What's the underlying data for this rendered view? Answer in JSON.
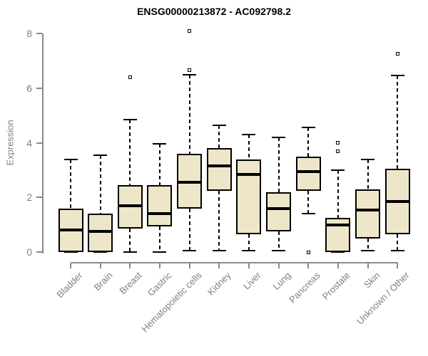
{
  "title": "ENSG00000213872 - AC092798.2",
  "chart_data": {
    "type": "boxplot",
    "title": "ENSG00000213872 - AC092798.2",
    "ylabel": "Expression",
    "xlabel": "",
    "ylim": [
      0,
      8
    ],
    "y_ticks": [
      0,
      2,
      4,
      6,
      8
    ],
    "grid": false,
    "legend": false,
    "categories": [
      "Bladder",
      "Brain",
      "Breast",
      "Gastric",
      "Hematopoietic cells",
      "Kidney",
      "Liver",
      "Lung",
      "Pancreas",
      "Prostate",
      "Skin",
      "Unknown / Other"
    ],
    "series": [
      {
        "category": "Bladder",
        "low": 0.0,
        "q1": 0.0,
        "median": 0.8,
        "q3": 1.6,
        "high": 3.4,
        "outliers": []
      },
      {
        "category": "Brain",
        "low": 0.0,
        "q1": 0.0,
        "median": 0.75,
        "q3": 1.4,
        "high": 3.55,
        "outliers": []
      },
      {
        "category": "Breast",
        "low": 0.0,
        "q1": 0.85,
        "median": 1.7,
        "q3": 2.45,
        "high": 4.85,
        "outliers": [
          6.4
        ]
      },
      {
        "category": "Gastric",
        "low": 0.0,
        "q1": 0.95,
        "median": 1.4,
        "q3": 2.45,
        "high": 3.95,
        "outliers": []
      },
      {
        "category": "Hematopoietic cells",
        "low": 0.05,
        "q1": 1.6,
        "median": 2.55,
        "q3": 3.6,
        "high": 6.5,
        "outliers": [
          8.1,
          6.65
        ]
      },
      {
        "category": "Kidney",
        "low": 0.05,
        "q1": 2.25,
        "median": 3.15,
        "q3": 3.8,
        "high": 4.65,
        "outliers": []
      },
      {
        "category": "Liver",
        "low": 0.05,
        "q1": 0.65,
        "median": 2.85,
        "q3": 3.4,
        "high": 4.3,
        "outliers": []
      },
      {
        "category": "Lung",
        "low": 0.05,
        "q1": 0.75,
        "median": 1.6,
        "q3": 2.2,
        "high": 4.2,
        "outliers": []
      },
      {
        "category": "Pancreas",
        "low": 1.4,
        "q1": 2.25,
        "median": 2.95,
        "q3": 3.5,
        "high": 4.55,
        "outliers": [
          0.0
        ]
      },
      {
        "category": "Prostate",
        "low": 0.0,
        "q1": 0.0,
        "median": 1.0,
        "q3": 1.25,
        "high": 3.0,
        "outliers": [
          4.0,
          3.7
        ]
      },
      {
        "category": "Skin",
        "low": 0.05,
        "q1": 0.5,
        "median": 1.55,
        "q3": 2.3,
        "high": 3.4,
        "outliers": []
      },
      {
        "category": "Unknown / Other",
        "low": 0.05,
        "q1": 0.65,
        "median": 1.85,
        "q3": 3.05,
        "high": 6.45,
        "outliers": [
          7.25
        ]
      }
    ],
    "colors": {
      "box_fill": "#ede6c8",
      "box_border": "#000000",
      "median": "#000000",
      "whisker": "#000000",
      "axis": "#8a8a8a",
      "tick_label": "#808080",
      "title": "#000000",
      "background": "#ffffff"
    }
  }
}
